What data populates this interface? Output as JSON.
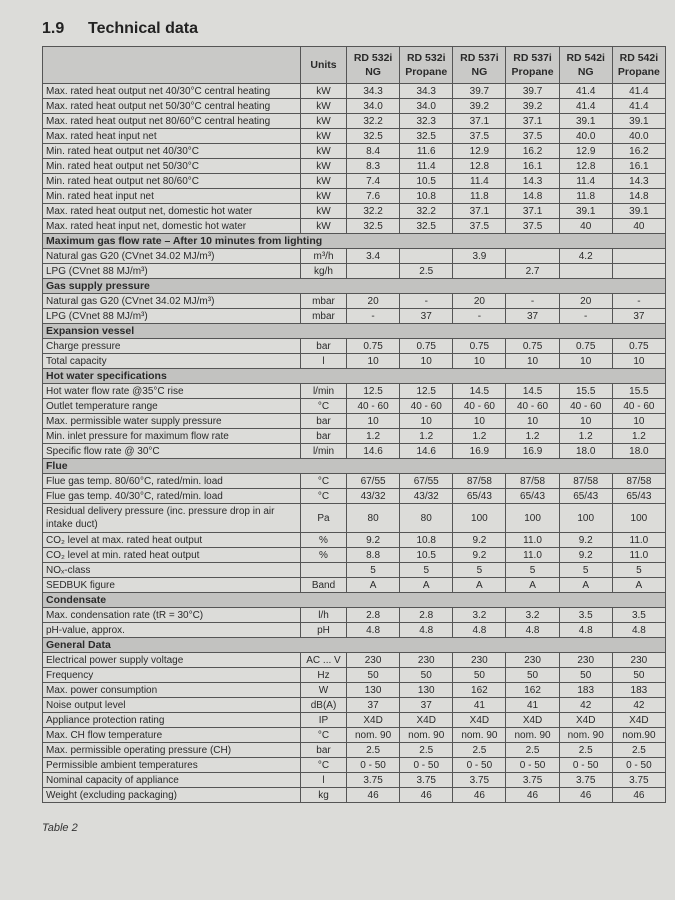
{
  "heading": {
    "number": "1.9",
    "title": "Technical data"
  },
  "table": {
    "columns": [
      "",
      "Units",
      "RD 532i NG",
      "RD 532i Propane",
      "RD 537i NG",
      "RD 537i Propane",
      "RD 542i NG",
      "RD 542i Propane"
    ],
    "rows": [
      {
        "label": "Max. rated heat output net 40/30°C central heating",
        "unit": "kW",
        "values": [
          "34.3",
          "34.3",
          "39.7",
          "39.7",
          "41.4",
          "41.4"
        ]
      },
      {
        "label": "Max. rated heat output net 50/30°C central heating",
        "unit": "kW",
        "values": [
          "34.0",
          "34.0",
          "39.2",
          "39.2",
          "41.4",
          "41.4"
        ]
      },
      {
        "label": "Max. rated heat output net 80/60°C central heating",
        "unit": "kW",
        "values": [
          "32.2",
          "32.3",
          "37.1",
          "37.1",
          "39.1",
          "39.1"
        ]
      },
      {
        "label": "Max. rated heat input net",
        "unit": "kW",
        "values": [
          "32.5",
          "32.5",
          "37.5",
          "37.5",
          "40.0",
          "40.0"
        ]
      },
      {
        "label": "Min. rated heat output net 40/30°C",
        "unit": "kW",
        "values": [
          "8.4",
          "11.6",
          "12.9",
          "16.2",
          "12.9",
          "16.2"
        ]
      },
      {
        "label": "Min. rated heat output net 50/30°C",
        "unit": "kW",
        "values": [
          "8.3",
          "11.4",
          "12.8",
          "16.1",
          "12.8",
          "16.1"
        ]
      },
      {
        "label": "Min. rated heat output net 80/60°C",
        "unit": "kW",
        "values": [
          "7.4",
          "10.5",
          "11.4",
          "14.3",
          "11.4",
          "14.3"
        ]
      },
      {
        "label": "Min. rated heat input net",
        "unit": "kW",
        "values": [
          "7.6",
          "10.8",
          "11.8",
          "14.8",
          "11.8",
          "14.8"
        ]
      },
      {
        "label": "Max. rated heat output net, domestic hot water",
        "unit": "kW",
        "values": [
          "32.2",
          "32.2",
          "37.1",
          "37.1",
          "39.1",
          "39.1"
        ]
      },
      {
        "label": "Max. rated heat input net, domestic hot water",
        "unit": "kW",
        "values": [
          "32.5",
          "32.5",
          "37.5",
          "37.5",
          "40",
          "40"
        ]
      },
      {
        "section": "Maximum gas flow rate – After 10 minutes from lighting"
      },
      {
        "label": "Natural gas G20 (CVnet 34.02 MJ/m³)",
        "unit": "m³/h",
        "values": [
          "3.4",
          "",
          "3.9",
          "",
          "4.2",
          ""
        ]
      },
      {
        "label": "LPG (CVnet 88 MJ/m³)",
        "unit": "kg/h",
        "values": [
          "",
          "2.5",
          "",
          "2.7",
          "",
          ""
        ]
      },
      {
        "section": "Gas supply pressure"
      },
      {
        "label": "Natural gas G20 (CVnet 34.02 MJ/m³)",
        "unit": "mbar",
        "values": [
          "20",
          "-",
          "20",
          "-",
          "20",
          "-"
        ]
      },
      {
        "label": "LPG (CVnet 88 MJ/m³)",
        "unit": "mbar",
        "values": [
          "-",
          "37",
          "-",
          "37",
          "-",
          "37"
        ]
      },
      {
        "section": "Expansion vessel"
      },
      {
        "label": "Charge pressure",
        "unit": "bar",
        "values": [
          "0.75",
          "0.75",
          "0.75",
          "0.75",
          "0.75",
          "0.75"
        ]
      },
      {
        "label": "Total capacity",
        "unit": "l",
        "values": [
          "10",
          "10",
          "10",
          "10",
          "10",
          "10"
        ]
      },
      {
        "section": "Hot water specifications"
      },
      {
        "label": "Hot water flow rate @35°C rise",
        "unit": "l/min",
        "values": [
          "12.5",
          "12.5",
          "14.5",
          "14.5",
          "15.5",
          "15.5"
        ]
      },
      {
        "label": "Outlet temperature range",
        "unit": "°C",
        "values": [
          "40 - 60",
          "40 - 60",
          "40 - 60",
          "40 - 60",
          "40 - 60",
          "40 - 60"
        ]
      },
      {
        "label": "Max. permissible water supply pressure",
        "unit": "bar",
        "values": [
          "10",
          "10",
          "10",
          "10",
          "10",
          "10"
        ]
      },
      {
        "label": "Min. inlet pressure for maximum flow rate",
        "unit": "bar",
        "values": [
          "1.2",
          "1.2",
          "1.2",
          "1.2",
          "1.2",
          "1.2"
        ]
      },
      {
        "label": "Specific flow rate @ 30°C",
        "unit": "l/min",
        "values": [
          "14.6",
          "14.6",
          "16.9",
          "16.9",
          "18.0",
          "18.0"
        ]
      },
      {
        "section": "Flue"
      },
      {
        "label": "Flue gas temp. 80/60°C, rated/min. load",
        "unit": "°C",
        "values": [
          "67/55",
          "67/55",
          "87/58",
          "87/58",
          "87/58",
          "87/58"
        ]
      },
      {
        "label": "Flue gas temp. 40/30°C, rated/min. load",
        "unit": "°C",
        "values": [
          "43/32",
          "43/32",
          "65/43",
          "65/43",
          "65/43",
          "65/43"
        ]
      },
      {
        "label": "Residual delivery pressure (inc. pressure drop in air intake duct)",
        "unit": "Pa",
        "values": [
          "80",
          "80",
          "100",
          "100",
          "100",
          "100"
        ],
        "tall": true
      },
      {
        "label": "CO₂ level at max. rated heat output",
        "unit": "%",
        "values": [
          "9.2",
          "10.8",
          "9.2",
          "11.0",
          "9.2",
          "11.0"
        ]
      },
      {
        "label": "CO₂ level at min. rated heat output",
        "unit": "%",
        "values": [
          "8.8",
          "10.5",
          "9.2",
          "11.0",
          "9.2",
          "11.0"
        ]
      },
      {
        "label": "NOₓ-class",
        "unit": "",
        "values": [
          "5",
          "5",
          "5",
          "5",
          "5",
          "5"
        ]
      },
      {
        "label": "SEDBUK figure",
        "unit": "Band",
        "values": [
          "A",
          "A",
          "A",
          "A",
          "A",
          "A"
        ]
      },
      {
        "section": "Condensate"
      },
      {
        "label": "Max. condensation rate (tR = 30°C)",
        "unit": "l/h",
        "values": [
          "2.8",
          "2.8",
          "3.2",
          "3.2",
          "3.5",
          "3.5"
        ]
      },
      {
        "label": "pH-value, approx.",
        "unit": "pH",
        "values": [
          "4.8",
          "4.8",
          "4.8",
          "4.8",
          "4.8",
          "4.8"
        ]
      },
      {
        "section": "General Data"
      },
      {
        "label": "Electrical power supply voltage",
        "unit": "AC ... V",
        "values": [
          "230",
          "230",
          "230",
          "230",
          "230",
          "230"
        ]
      },
      {
        "label": "Frequency",
        "unit": "Hz",
        "values": [
          "50",
          "50",
          "50",
          "50",
          "50",
          "50"
        ]
      },
      {
        "label": "Max. power consumption",
        "unit": "W",
        "values": [
          "130",
          "130",
          "162",
          "162",
          "183",
          "183"
        ]
      },
      {
        "label": "Noise output level",
        "unit": "dB(A)",
        "values": [
          "37",
          "37",
          "41",
          "41",
          "42",
          "42"
        ]
      },
      {
        "label": "Appliance protection rating",
        "unit": "IP",
        "values": [
          "X4D",
          "X4D",
          "X4D",
          "X4D",
          "X4D",
          "X4D"
        ]
      },
      {
        "label": "Max. CH flow temperature",
        "unit": "°C",
        "values": [
          "nom. 90",
          "nom. 90",
          "nom. 90",
          "nom. 90",
          "nom. 90",
          "nom.90"
        ]
      },
      {
        "label": "Max. permissible operating pressure (CH)",
        "unit": "bar",
        "values": [
          "2.5",
          "2.5",
          "2.5",
          "2.5",
          "2.5",
          "2.5"
        ]
      },
      {
        "label": "Permissible ambient temperatures",
        "unit": "°C",
        "values": [
          "0 - 50",
          "0 - 50",
          "0 - 50",
          "0 - 50",
          "0 - 50",
          "0 - 50"
        ]
      },
      {
        "label": "Nominal capacity of appliance",
        "unit": "l",
        "values": [
          "3.75",
          "3.75",
          "3.75",
          "3.75",
          "3.75",
          "3.75"
        ]
      },
      {
        "label": "Weight (excluding packaging)",
        "unit": "kg",
        "values": [
          "46",
          "46",
          "46",
          "46",
          "46",
          "46"
        ]
      }
    ]
  },
  "caption": "Table 2",
  "colors": {
    "header_bg": "#c9c9c7",
    "section_bg": "#c2c2c0",
    "paper": "#dcdcd9"
  }
}
